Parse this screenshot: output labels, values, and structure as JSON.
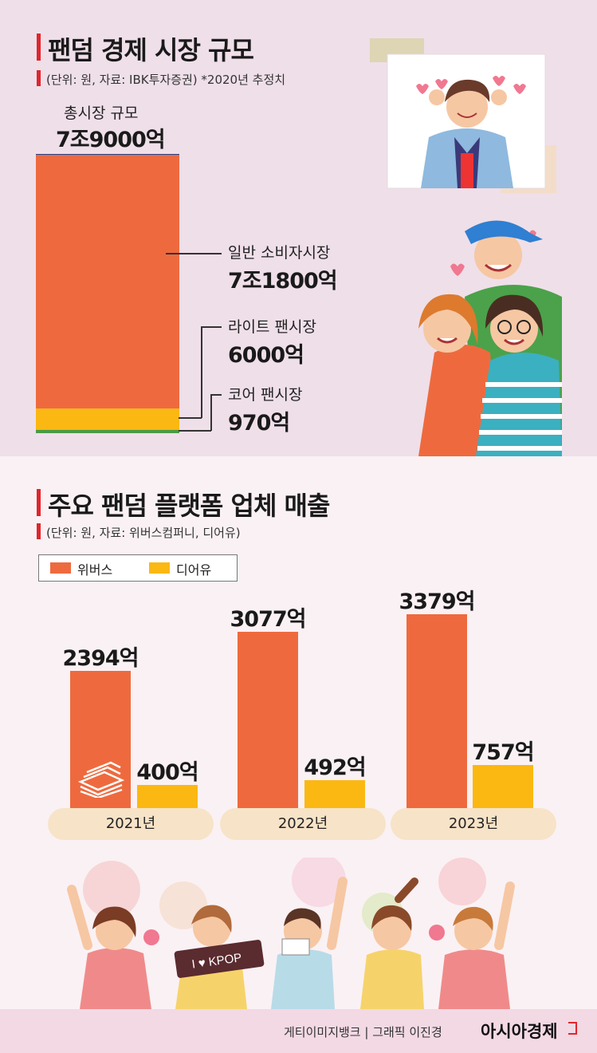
{
  "section1": {
    "title": "팬덤 경제 시장 규모",
    "unit_note": "(단위: 원, 자료: IBK투자증권) *2020년 추정치",
    "total_label": "총시장 규모",
    "total_value": "7조9000억",
    "segments": [
      {
        "label": "일반 소비자시장",
        "value": "7조1800억"
      },
      {
        "label": "라이트 팬시장",
        "value": "6000억"
      },
      {
        "label": "코어 팬시장",
        "value": "970억"
      }
    ]
  },
  "section2": {
    "title": "주요 팬덤 플랫폼 업체 매출",
    "unit_note": "(단위: 원, 자료: 위버스컴퍼니, 디어유)",
    "legend": [
      {
        "name": "위버스",
        "color": "#ee6a3e"
      },
      {
        "name": "디어유",
        "color": "#fbb812"
      }
    ],
    "year_labels": [
      "2021년",
      "2022년",
      "2023년"
    ],
    "bar_labels": {
      "weverse": [
        "2394억",
        "3077억",
        "3379억"
      ],
      "dearu": [
        "400억",
        "492억",
        "757억"
      ]
    },
    "kpop_sign": "I ♥ KPOP"
  },
  "footer": {
    "credit": "게티이미지뱅크 | 그래픽 이진경",
    "brand": "아시아경제"
  },
  "colors": {
    "accent_red": "#e0262c",
    "weverse": "#ee6a3e",
    "dearu": "#fbb812",
    "stack_top": "#1e4595",
    "stack_main": "#ee6a3e",
    "stack_light": "#fbb812",
    "stack_core": "#4a9b47"
  },
  "chart_data": [
    {
      "type": "bar",
      "stacked": true,
      "title": "팬덤 경제 시장 규모",
      "categories": [
        "총시장 규모"
      ],
      "total": 79000,
      "unit": "억 원",
      "series": [
        {
          "name": "일반 소비자시장",
          "values": [
            71800
          ],
          "color": "#ee6a3e"
        },
        {
          "name": "라이트 팬시장",
          "values": [
            6000
          ],
          "color": "#fbb812"
        },
        {
          "name": "코어 팬시장",
          "values": [
            970
          ],
          "color": "#4a9b47"
        }
      ],
      "ylim": [
        0,
        79000
      ]
    },
    {
      "type": "bar",
      "title": "주요 팬덤 플랫폼 업체 매출",
      "categories": [
        "2021년",
        "2022년",
        "2023년"
      ],
      "unit": "억 원",
      "series": [
        {
          "name": "위버스",
          "values": [
            2394,
            3077,
            3379
          ],
          "color": "#ee6a3e"
        },
        {
          "name": "디어유",
          "values": [
            400,
            492,
            757
          ],
          "color": "#fbb812"
        }
      ],
      "legend": "top-left",
      "ylim": [
        0,
        3379
      ]
    }
  ]
}
